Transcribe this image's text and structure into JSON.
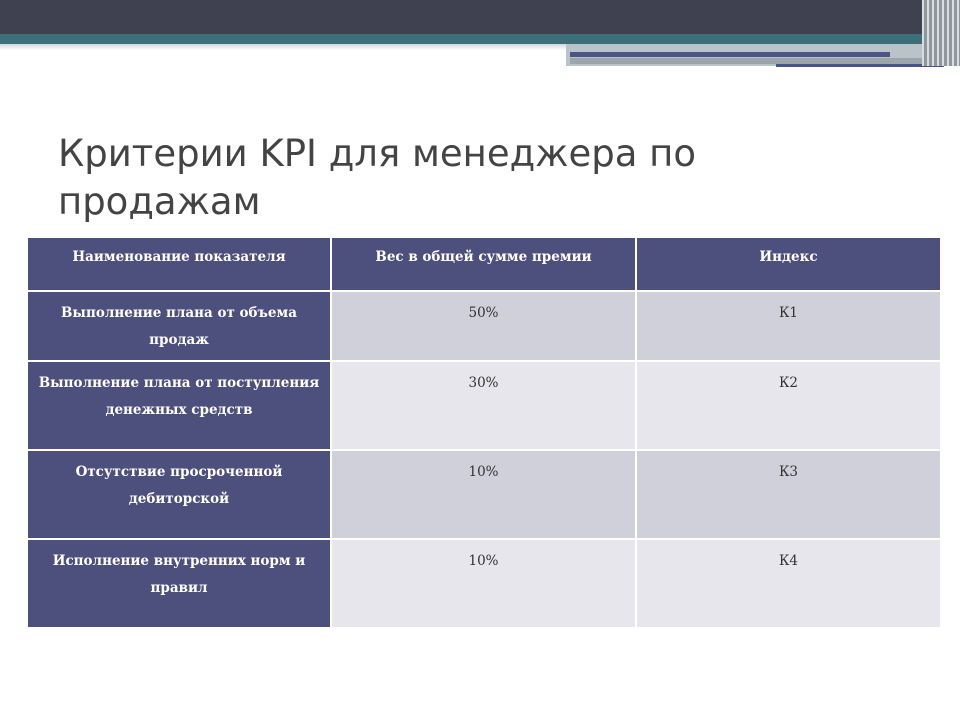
{
  "slide": {
    "title_line1": "Критерии KPI для менеджера по",
    "title_line2": "продажам"
  },
  "table": {
    "headers": [
      "Наименование показателя",
      "Вес в общей сумме премии",
      "Индекс"
    ],
    "rows": [
      {
        "name": "Выполнение плана от объема продаж",
        "weight": "50%",
        "index": "К1"
      },
      {
        "name": "Выполнение плана от поступления денежных средств",
        "weight": "30%",
        "index": "К2"
      },
      {
        "name": "Отсутствие просроченной дебиторской",
        "weight": "10%",
        "index": "К3"
      },
      {
        "name": "Исполнение внутренних норм и правил",
        "weight": "10%",
        "index": "К4"
      }
    ]
  },
  "colors": {
    "header_bg": "#4d507d",
    "row_odd_bg": "#d0d0da",
    "row_even_bg": "#e6e6ec",
    "title_color": "#444444"
  }
}
